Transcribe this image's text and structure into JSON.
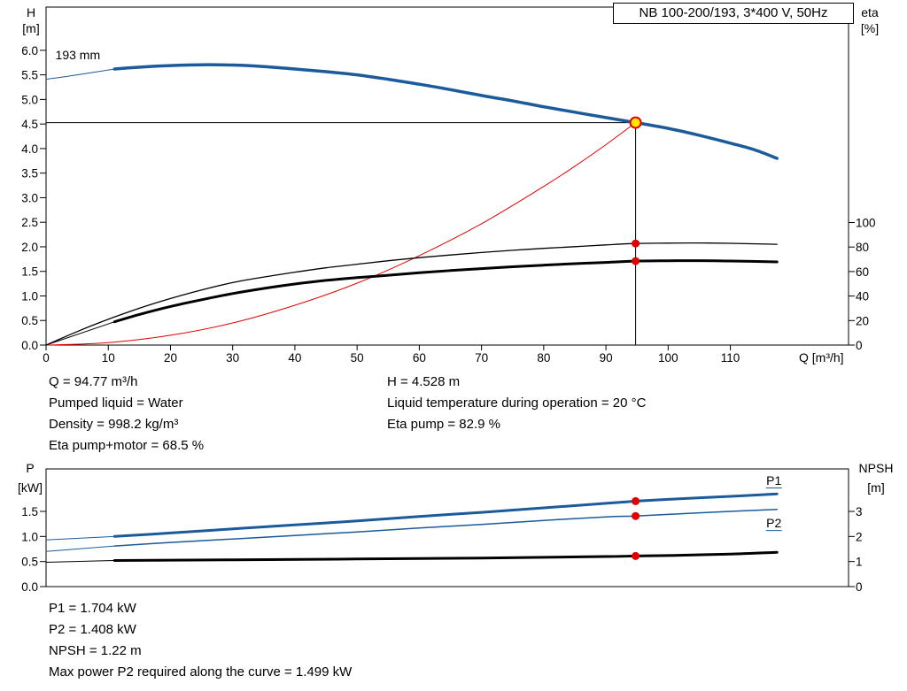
{
  "colors": {
    "blue": "#1b5a9b",
    "red": "#e10000",
    "black": "#000000",
    "yellow": "#ffe600"
  },
  "details": {
    "left": [
      "Q = 94.77 m³/h",
      "Pumped liquid = Water",
      "Density = 998.2 kg/m³",
      "Eta pump+motor = 68.5 %"
    ],
    "right": [
      "H = 4.528 m",
      "Liquid temperature during operation = 20 °C",
      "Eta pump = 82.9 %"
    ]
  },
  "power_details": [
    "P1 = 1.704 kW",
    "P2 = 1.408 kW",
    "NPSH = 1.22 m",
    "Max power P2 required along the curve = 1.499 kW"
  ],
  "chart_data": [
    {
      "id": "top-chart",
      "type": "line",
      "title": "NB 100-200/193, 3*400 V, 50Hz",
      "x_axis": {
        "label": "Q [m³/h]",
        "min": 0,
        "max": 129,
        "decimals": 0,
        "ticks": [
          0,
          10,
          20,
          30,
          40,
          50,
          60,
          70,
          80,
          90,
          100,
          110
        ]
      },
      "y_left": {
        "label": [
          "H",
          "[m]"
        ],
        "min": 0,
        "max": 6.88,
        "decimals": 1,
        "ticks": [
          0,
          0.5,
          1,
          1.5,
          2,
          2.5,
          3,
          3.5,
          4,
          4.5,
          5,
          5.5,
          6
        ]
      },
      "y_right": {
        "label": [
          "eta",
          "[%]"
        ],
        "min": 0,
        "max": 275.8,
        "decimals": 0,
        "ticks": [
          0,
          20,
          40,
          60,
          80,
          100
        ]
      },
      "annotations": [
        {
          "text": "193 mm",
          "q": 1.5,
          "v": 5.82,
          "axis": "left",
          "anchor": "start",
          "color": "black",
          "name": "impeller-diameter-label"
        }
      ],
      "duty_crosshair": {
        "q": 94.77,
        "v": 4.528,
        "axis": "left"
      },
      "series": [
        {
          "name": "head-curve-lead-in",
          "axis": "left",
          "color": "blue",
          "width": 1,
          "points": [
            [
              0,
              5.41
            ],
            [
              5,
              5.5
            ],
            [
              11,
              5.62
            ]
          ]
        },
        {
          "name": "head-curve-193mm",
          "axis": "left",
          "color": "blue",
          "width": 3.5,
          "points": [
            [
              11,
              5.62
            ],
            [
              16,
              5.665
            ],
            [
              20,
              5.69
            ],
            [
              25,
              5.705
            ],
            [
              30,
              5.7
            ],
            [
              35,
              5.67
            ],
            [
              40,
              5.62
            ],
            [
              45,
              5.565
            ],
            [
              50,
              5.5
            ],
            [
              55,
              5.41
            ],
            [
              60,
              5.31
            ],
            [
              65,
              5.2
            ],
            [
              70,
              5.08
            ],
            [
              75,
              4.97
            ],
            [
              80,
              4.85
            ],
            [
              85,
              4.74
            ],
            [
              90,
              4.63
            ],
            [
              94.77,
              4.528
            ],
            [
              100,
              4.41
            ],
            [
              105,
              4.27
            ],
            [
              110,
              4.11
            ],
            [
              114,
              3.97
            ],
            [
              117.5,
              3.8
            ]
          ]
        },
        {
          "name": "system-curve",
          "axis": "left",
          "color": "red",
          "width": 1,
          "points": [
            [
              0,
              0
            ],
            [
              10,
              0.05
            ],
            [
              20,
              0.2
            ],
            [
              30,
              0.45
            ],
            [
              40,
              0.81
            ],
            [
              50,
              1.26
            ],
            [
              60,
              1.82
            ],
            [
              70,
              2.47
            ],
            [
              80,
              3.23
            ],
            [
              85,
              3.64
            ],
            [
              90,
              4.08
            ],
            [
              94.77,
              4.528
            ]
          ]
        },
        {
          "name": "eta-pump-curve",
          "axis": "right",
          "color": "black",
          "width": 1.3,
          "points": [
            [
              0,
              0
            ],
            [
              5,
              11
            ],
            [
              10,
              21
            ],
            [
              15,
              30
            ],
            [
              20,
              38
            ],
            [
              25,
              45
            ],
            [
              30,
              51
            ],
            [
              35,
              55.5
            ],
            [
              40,
              59.5
            ],
            [
              45,
              63
            ],
            [
              50,
              66
            ],
            [
              55,
              68.8
            ],
            [
              60,
              71.3
            ],
            [
              65,
              73.5
            ],
            [
              70,
              75.5
            ],
            [
              75,
              77.3
            ],
            [
              80,
              78.9
            ],
            [
              85,
              80.3
            ],
            [
              90,
              81.7
            ],
            [
              94.77,
              82.9
            ],
            [
              100,
              83.2
            ],
            [
              105,
              83.3
            ],
            [
              110,
              83
            ],
            [
              117.5,
              82.2
            ]
          ]
        },
        {
          "name": "eta-pump-motor-lead-in",
          "axis": "right",
          "color": "black",
          "width": 1,
          "points": [
            [
              0,
              0
            ],
            [
              11,
              19
            ]
          ]
        },
        {
          "name": "eta-pump-motor-curve",
          "axis": "right",
          "color": "black",
          "width": 3,
          "points": [
            [
              11,
              19
            ],
            [
              15,
              25
            ],
            [
              20,
              31.5
            ],
            [
              25,
              37
            ],
            [
              30,
              42
            ],
            [
              35,
              46.2
            ],
            [
              40,
              49.8
            ],
            [
              45,
              52.8
            ],
            [
              50,
              55
            ],
            [
              55,
              57
            ],
            [
              60,
              59
            ],
            [
              65,
              60.8
            ],
            [
              70,
              62.4
            ],
            [
              75,
              63.9
            ],
            [
              80,
              65.2
            ],
            [
              85,
              66.4
            ],
            [
              90,
              67.4
            ],
            [
              94.77,
              68.5
            ],
            [
              100,
              68.8
            ],
            [
              105,
              68.9
            ],
            [
              110,
              68.6
            ],
            [
              117.5,
              67.9
            ]
          ]
        }
      ],
      "markers": [
        {
          "name": "duty-point",
          "q": 94.77,
          "v": 4.528,
          "axis": "left",
          "r": 6,
          "fill": "yellow",
          "stroke": "red"
        },
        {
          "name": "eta-pump-duty-point",
          "q": 94.77,
          "v": 82.9,
          "axis": "right",
          "r": 4.5,
          "fill": "red"
        },
        {
          "name": "eta-pump-motor-duty-point",
          "q": 94.77,
          "v": 68.5,
          "axis": "right",
          "r": 4.5,
          "fill": "red"
        }
      ]
    },
    {
      "id": "bottom-chart",
      "type": "line",
      "title": "",
      "x_axis": {
        "label": "",
        "min": 0,
        "max": 129,
        "decimals": 0,
        "ticks": []
      },
      "y_left": {
        "label": [
          "P",
          "[kW]"
        ],
        "min": 0,
        "max": 2.347,
        "decimals": 1,
        "ticks": [
          0,
          0.5,
          1,
          1.5
        ]
      },
      "y_right": {
        "label": [
          "NPSH",
          "[m]"
        ],
        "min": 0,
        "max": 4.694,
        "decimals": 0,
        "ticks": [
          0,
          1,
          2,
          3
        ]
      },
      "annotations": [
        {
          "text": "P1",
          "q": 117,
          "v": 2.03,
          "axis": "left",
          "anchor": "middle",
          "color": "blue",
          "underline": true,
          "name": "p1-curve-label"
        },
        {
          "text": "P2",
          "q": 117,
          "v": 1.18,
          "axis": "left",
          "anchor": "middle",
          "color": "blue",
          "underline": true,
          "name": "p2-curve-label"
        }
      ],
      "series": [
        {
          "name": "p1-curve-lead-in",
          "axis": "left",
          "color": "blue",
          "width": 1,
          "points": [
            [
              0,
              0.93
            ],
            [
              11,
              1
            ]
          ]
        },
        {
          "name": "p1-curve",
          "axis": "left",
          "color": "blue",
          "width": 3,
          "points": [
            [
              11,
              1
            ],
            [
              20,
              1.07
            ],
            [
              30,
              1.15
            ],
            [
              40,
              1.23
            ],
            [
              50,
              1.31
            ],
            [
              60,
              1.4
            ],
            [
              70,
              1.48
            ],
            [
              80,
              1.57
            ],
            [
              90,
              1.66
            ],
            [
              94.77,
              1.704
            ],
            [
              100,
              1.74
            ],
            [
              110,
              1.8
            ],
            [
              117.5,
              1.85
            ]
          ]
        },
        {
          "name": "p2-curve-lead-in",
          "axis": "left",
          "color": "blue",
          "width": 1,
          "points": [
            [
              0,
              0.7
            ],
            [
              11,
              0.81
            ]
          ]
        },
        {
          "name": "p2-curve",
          "axis": "left",
          "color": "blue",
          "width": 1.5,
          "points": [
            [
              11,
              0.81
            ],
            [
              20,
              0.88
            ],
            [
              30,
              0.95
            ],
            [
              40,
              1.02
            ],
            [
              50,
              1.09
            ],
            [
              60,
              1.17
            ],
            [
              70,
              1.24
            ],
            [
              80,
              1.32
            ],
            [
              90,
              1.39
            ],
            [
              94.77,
              1.408
            ],
            [
              100,
              1.44
            ],
            [
              110,
              1.5
            ],
            [
              117.5,
              1.54
            ]
          ]
        },
        {
          "name": "npsh-curve-lead-in",
          "axis": "right",
          "color": "black",
          "width": 1,
          "points": [
            [
              0,
              0.97
            ],
            [
              11,
              1.04
            ]
          ]
        },
        {
          "name": "npsh-curve",
          "axis": "right",
          "color": "black",
          "width": 3,
          "points": [
            [
              11,
              1.04
            ],
            [
              30,
              1.07
            ],
            [
              50,
              1.1
            ],
            [
              70,
              1.14
            ],
            [
              90,
              1.2
            ],
            [
              94.77,
              1.22
            ],
            [
              100,
              1.24
            ],
            [
              110,
              1.3
            ],
            [
              117.5,
              1.37
            ]
          ]
        }
      ],
      "markers": [
        {
          "name": "p1-duty-point",
          "q": 94.77,
          "v": 1.704,
          "axis": "left",
          "r": 4.5,
          "fill": "red"
        },
        {
          "name": "p2-duty-point",
          "q": 94.77,
          "v": 1.408,
          "axis": "left",
          "r": 4.5,
          "fill": "red"
        },
        {
          "name": "npsh-duty-point",
          "q": 94.77,
          "v": 1.22,
          "axis": "right",
          "r": 4.5,
          "fill": "red"
        }
      ]
    }
  ]
}
